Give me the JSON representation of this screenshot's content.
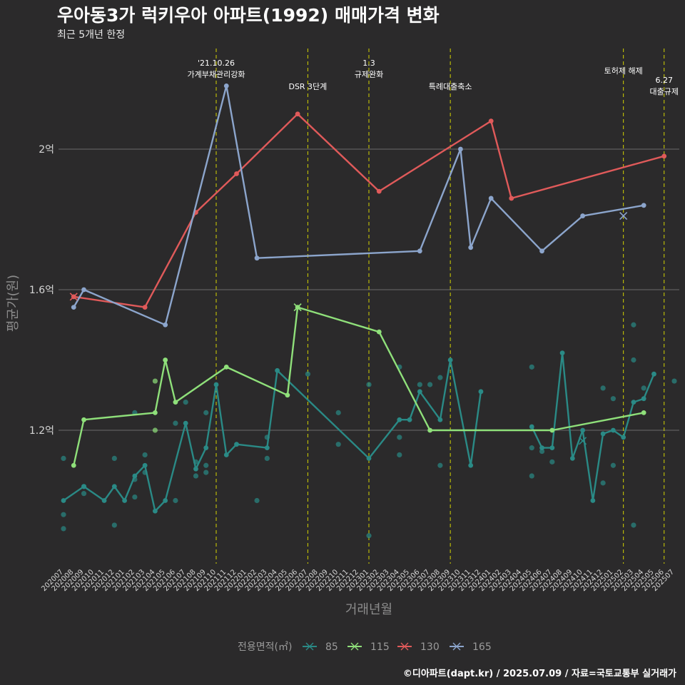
{
  "title": "우아동3가 럭키우아 아파트(1992) 매매가격 변화",
  "subtitle": "최근 5개년 한정",
  "caption": "©디아파트(dapt.kr) / 2025.07.09 / 자료=국토교통부 실거래가",
  "chart_data": {
    "type": "line",
    "xlabel": "거래년월",
    "ylabel": "평균가(원)",
    "categories": [
      "202007",
      "202008",
      "202009",
      "202010",
      "202011",
      "202012",
      "202101",
      "202102",
      "202103",
      "202104",
      "202105",
      "202106",
      "202107",
      "202108",
      "202109",
      "202110",
      "202111",
      "202112",
      "202201",
      "202202",
      "202203",
      "202204",
      "202205",
      "202206",
      "202207",
      "202208",
      "202209",
      "202210",
      "202211",
      "202212",
      "202301",
      "202302",
      "202303",
      "202304",
      "202305",
      "202306",
      "202307",
      "202308",
      "202309",
      "202310",
      "202311",
      "202312",
      "202401",
      "202402",
      "202403",
      "202404",
      "202405",
      "202406",
      "202407",
      "202408",
      "202409",
      "202410",
      "202411",
      "202412",
      "202501",
      "202502",
      "202503",
      "202504",
      "202505",
      "202506",
      "202507"
    ],
    "yticks": [
      {
        "value": 1.2,
        "label": "1.2억"
      },
      {
        "value": 1.6,
        "label": "1.6억"
      },
      {
        "value": 2.0,
        "label": "2억"
      }
    ],
    "ylim": [
      0.82,
      2.18
    ],
    "grid": true,
    "legend": {
      "title": "전용면적(㎡)",
      "position": "bottom"
    },
    "series": [
      {
        "name": "85",
        "color": "#2a8a86",
        "points": [
          [
            "202007",
            1.0
          ],
          [
            "202009",
            1.04
          ],
          [
            "202011",
            1.0
          ],
          [
            "202012",
            1.04
          ],
          [
            "202101",
            1.0
          ],
          [
            "202102",
            1.07
          ],
          [
            "202103",
            1.1
          ],
          [
            "202104",
            0.97
          ],
          [
            "202105",
            1.0
          ],
          [
            "202107",
            1.22
          ],
          [
            "202108",
            1.09
          ],
          [
            "202109",
            1.15
          ],
          [
            "202110",
            1.33
          ],
          [
            "202111",
            1.13
          ],
          [
            "202112",
            1.16
          ],
          [
            "202203",
            1.15
          ],
          [
            "202204",
            1.37
          ],
          [
            "202301",
            1.12
          ],
          [
            "202304",
            1.23
          ],
          [
            "202305",
            1.23
          ],
          [
            "202306",
            1.31
          ],
          [
            "202308",
            1.23
          ],
          [
            "202309",
            1.4
          ],
          [
            "202311",
            1.1
          ],
          [
            "202312",
            1.31
          ],
          null,
          [
            "202405",
            1.21
          ],
          [
            "202406",
            1.15
          ],
          [
            "202407",
            1.15
          ],
          [
            "202408",
            1.42
          ],
          [
            "202409",
            1.12
          ],
          [
            "202410",
            1.2
          ],
          [
            "202411",
            1.0
          ],
          [
            "202412",
            1.19
          ],
          [
            "202501",
            1.2
          ],
          [
            "202502",
            1.18
          ],
          [
            "202503",
            1.28
          ],
          [
            "202504",
            1.29
          ],
          [
            "202505",
            1.36
          ]
        ]
      },
      {
        "name": "115",
        "color": "#8fe07a",
        "points": [
          [
            "202008",
            1.1
          ],
          [
            "202009",
            1.23
          ],
          [
            "202104",
            1.25
          ],
          [
            "202105",
            1.4
          ],
          [
            "202106",
            1.28
          ],
          [
            "202111",
            1.38
          ],
          [
            "202205",
            1.3
          ],
          [
            "202206",
            1.55
          ],
          [
            "202302",
            1.48
          ],
          [
            "202307",
            1.2
          ],
          [
            "202407",
            1.2
          ],
          [
            "202504",
            1.25
          ]
        ]
      },
      {
        "name": "130",
        "color": "#e05a5a",
        "points": [
          [
            "202008",
            1.58
          ],
          [
            "202103",
            1.55
          ],
          [
            "202108",
            1.82
          ],
          [
            "202112",
            1.93
          ],
          [
            "202206",
            2.1
          ],
          [
            "202302",
            1.88
          ],
          [
            "202401",
            2.08
          ],
          [
            "202403",
            1.86
          ],
          [
            "202506",
            1.98
          ]
        ]
      },
      {
        "name": "165",
        "color": "#8ca5cc",
        "points": [
          [
            "202008",
            1.55
          ],
          [
            "202009",
            1.6
          ],
          [
            "202105",
            1.5
          ],
          [
            "202111",
            2.18
          ],
          [
            "202202",
            1.69
          ],
          [
            "202306",
            1.71
          ],
          [
            "202310",
            2.0
          ],
          [
            "202311",
            1.72
          ],
          [
            "202401",
            1.86
          ],
          [
            "202406",
            1.71
          ],
          [
            "202410",
            1.81
          ],
          [
            "202504",
            1.84
          ]
        ]
      }
    ],
    "scatter": [
      {
        "series": "85",
        "x": "202007",
        "y": 1.12
      },
      {
        "series": "85",
        "x": "202007",
        "y": 0.96
      },
      {
        "series": "85",
        "x": "202007",
        "y": 0.92
      },
      {
        "series": "85",
        "x": "202009",
        "y": 1.02
      },
      {
        "series": "85",
        "x": "202009",
        "y": 1.04
      },
      {
        "series": "85",
        "x": "202012",
        "y": 0.93
      },
      {
        "series": "85",
        "x": "202012",
        "y": 1.12
      },
      {
        "series": "85",
        "x": "202103",
        "y": 1.13
      },
      {
        "series": "85",
        "x": "202103",
        "y": 1.08
      },
      {
        "series": "85",
        "x": "202102",
        "y": 1.06
      },
      {
        "series": "85",
        "x": "202102",
        "y": 1.01
      },
      {
        "series": "85",
        "x": "202102",
        "y": 1.25
      },
      {
        "series": "85",
        "x": "202106",
        "y": 1.22
      },
      {
        "series": "85",
        "x": "202106",
        "y": 1.0
      },
      {
        "series": "85",
        "x": "202107",
        "y": 1.28
      },
      {
        "series": "85",
        "x": "202108",
        "y": 1.07
      },
      {
        "series": "85",
        "x": "202108",
        "y": 1.11
      },
      {
        "series": "85",
        "x": "202109",
        "y": 1.25
      },
      {
        "series": "85",
        "x": "202109",
        "y": 1.08
      },
      {
        "series": "85",
        "x": "202109",
        "y": 1.1
      },
      {
        "series": "85",
        "x": "202202",
        "y": 1.0
      },
      {
        "series": "85",
        "x": "202203",
        "y": 1.12
      },
      {
        "series": "85",
        "x": "202203",
        "y": 1.18
      },
      {
        "series": "85",
        "x": "202207",
        "y": 1.36
      },
      {
        "series": "85",
        "x": "202210",
        "y": 1.25
      },
      {
        "series": "85",
        "x": "202210",
        "y": 1.16
      },
      {
        "series": "85",
        "x": "202301",
        "y": 0.9
      },
      {
        "series": "85",
        "x": "202301",
        "y": 1.33
      },
      {
        "series": "85",
        "x": "202304",
        "y": 1.38
      },
      {
        "series": "85",
        "x": "202304",
        "y": 1.13
      },
      {
        "series": "85",
        "x": "202304",
        "y": 1.18
      },
      {
        "series": "85",
        "x": "202306",
        "y": 1.33
      },
      {
        "series": "85",
        "x": "202307",
        "y": 1.33
      },
      {
        "series": "85",
        "x": "202308",
        "y": 1.35
      },
      {
        "series": "85",
        "x": "202308",
        "y": 1.1
      },
      {
        "series": "85",
        "x": "202405",
        "y": 1.38
      },
      {
        "series": "85",
        "x": "202405",
        "y": 1.07
      },
      {
        "series": "85",
        "x": "202405",
        "y": 1.15
      },
      {
        "series": "85",
        "x": "202406",
        "y": 1.14
      },
      {
        "series": "85",
        "x": "202407",
        "y": 1.11
      },
      {
        "series": "85",
        "x": "202412",
        "y": 1.05
      },
      {
        "series": "85",
        "x": "202412",
        "y": 1.32
      },
      {
        "series": "85",
        "x": "202501",
        "y": 1.29
      },
      {
        "series": "85",
        "x": "202501",
        "y": 1.1
      },
      {
        "series": "85",
        "x": "202503",
        "y": 1.5
      },
      {
        "series": "85",
        "x": "202503",
        "y": 1.4
      },
      {
        "series": "85",
        "x": "202503",
        "y": 0.93
      },
      {
        "series": "85",
        "x": "202504",
        "y": 1.32
      },
      {
        "series": "85",
        "x": "202507",
        "y": 1.34
      },
      {
        "series": "115",
        "x": "202104",
        "y": 1.34
      },
      {
        "series": "115",
        "x": "202104",
        "y": 1.2
      }
    ],
    "crosses": [
      {
        "series": "130",
        "x": "202008",
        "y": 1.58
      },
      {
        "series": "115",
        "x": "202206",
        "y": 1.55
      },
      {
        "series": "85",
        "x": "202410",
        "y": 1.17
      },
      {
        "series": "165",
        "x": "202502",
        "y": 1.81
      }
    ],
    "vlines": [
      {
        "x": "202110",
        "label": "'21.10.26\n가계부채관리강화"
      },
      {
        "x": "202207",
        "label": "DSR 3단계"
      },
      {
        "x": "202301",
        "label": "1.3\n규제완화"
      },
      {
        "x": "202309",
        "label": "특례대출축소"
      },
      {
        "x": "202502",
        "label": "토허제 해제"
      },
      {
        "x": "202506",
        "label": "6.27\n대출규제"
      }
    ]
  }
}
